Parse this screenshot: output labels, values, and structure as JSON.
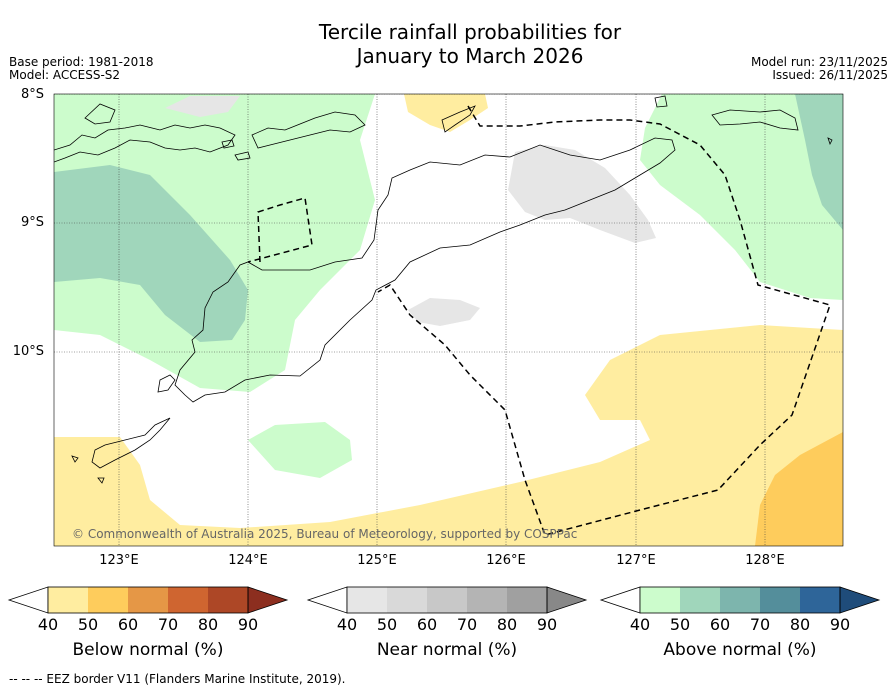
{
  "title_line1": "Tercile rainfall probabilities for",
  "title_line2": "January to March 2026",
  "base_period": "Base period: 1981-2018",
  "model": "Model: ACCESS-S2",
  "model_run": "Model run: 23/11/2025",
  "issued": "Issued: 26/11/2025",
  "copyright": "© Commonwealth of Australia 2025, Bureau of Meteorology, supported by COSPPac",
  "lat_labels": [
    "8°S",
    "9°S",
    "10°S"
  ],
  "lon_labels": [
    "123°E",
    "124°E",
    "125°E",
    "126°E",
    "127°E",
    "128°E"
  ],
  "colorbars": {
    "below": {
      "label": "Below normal (%)",
      "ticks": [
        "40",
        "50",
        "60",
        "70",
        "80",
        "90"
      ],
      "colors": [
        "#ffeda0",
        "#fecc5c",
        "#e59746",
        "#cf6530",
        "#ad4726",
        "#8c2e1f"
      ]
    },
    "near": {
      "label": "Near normal (%)",
      "ticks": [
        "40",
        "50",
        "60",
        "70",
        "80",
        "90"
      ],
      "colors": [
        "#e6e6e6",
        "#d9d9d9",
        "#c8c8c8",
        "#b4b4b4",
        "#a0a0a0",
        "#888888"
      ]
    },
    "above": {
      "label": "Above normal (%)",
      "ticks": [
        "40",
        "50",
        "60",
        "70",
        "80",
        "90"
      ],
      "colors": [
        "#ccfccc",
        "#a0d6bb",
        "#7db5ad",
        "#548e9b",
        "#2e6599",
        "#1f4c7a"
      ]
    }
  },
  "footnote": "--  --  -- EEZ border V11 (Flanders Marine Institute, 2019).",
  "colors": {
    "above_normal_40": "#ccfccc",
    "above_normal_50": "#a0d6bb",
    "below_normal_40": "#ffeda0",
    "below_normal_50": "#fecc5c",
    "near_normal_40": "#e6e6e6"
  }
}
